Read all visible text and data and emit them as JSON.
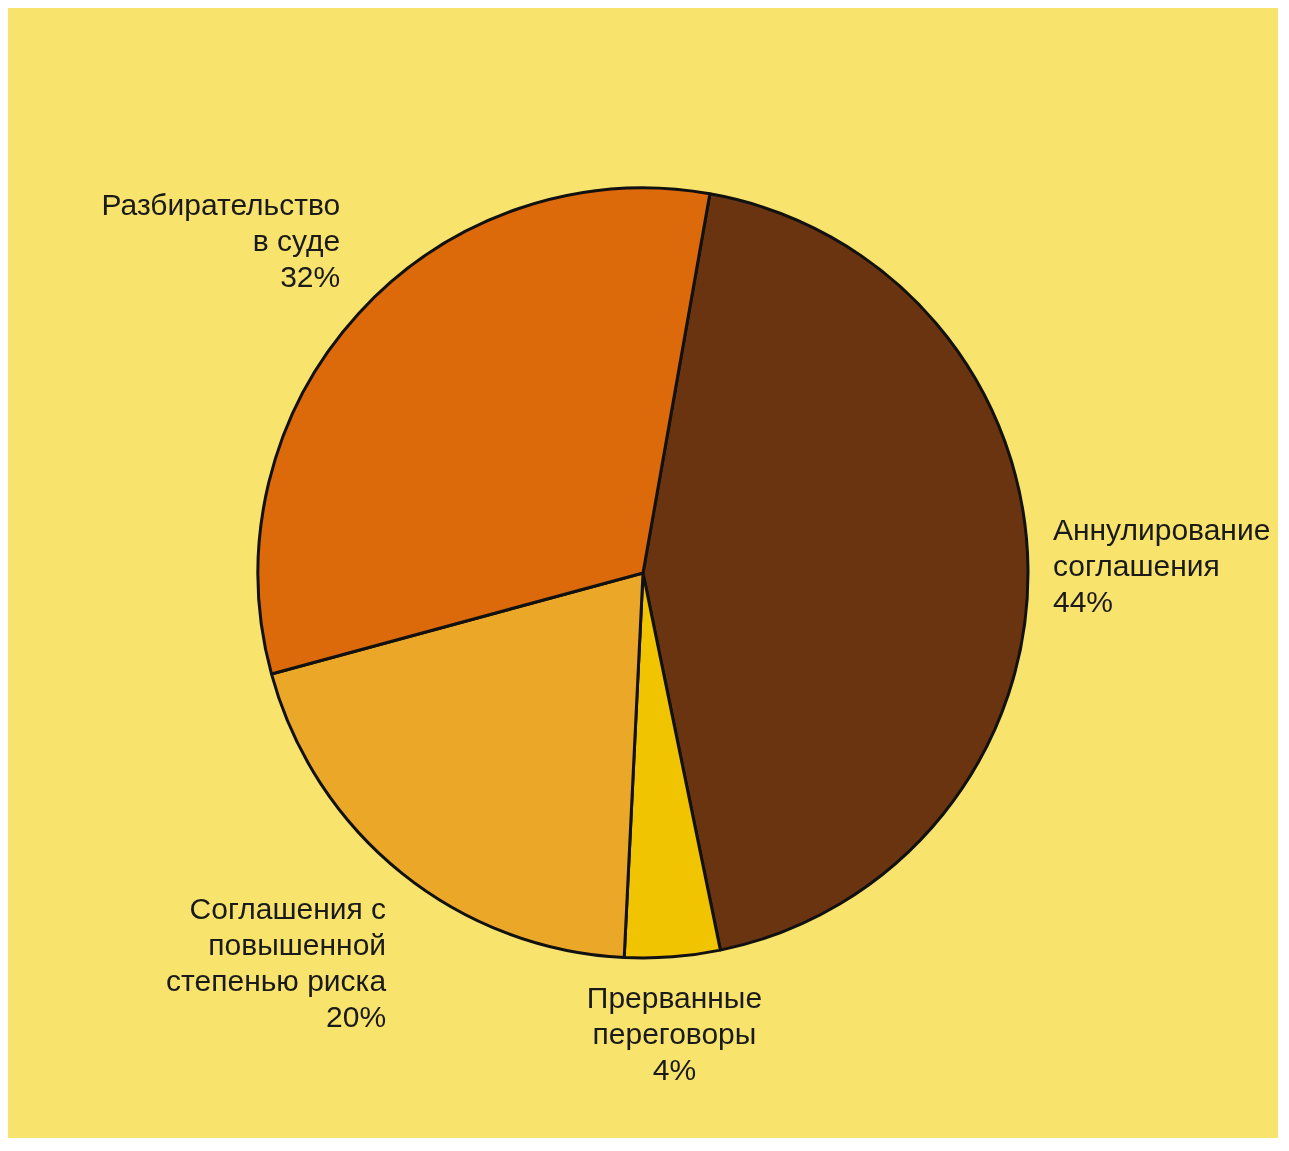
{
  "chart_data": {
    "type": "pie",
    "categories": [
      "Аннулирование соглашения",
      "Прерванные переговоры",
      "Соглашения с повышенной степенью риска",
      "Разбирательство в суде"
    ],
    "values": [
      44,
      4,
      20,
      32
    ],
    "value_labels": [
      "44%",
      "4%",
      "20%",
      "32%"
    ],
    "colors": [
      "#6b3410",
      "#f0c400",
      "#eba828",
      "#dd6a0a"
    ],
    "legend": false
  }
}
